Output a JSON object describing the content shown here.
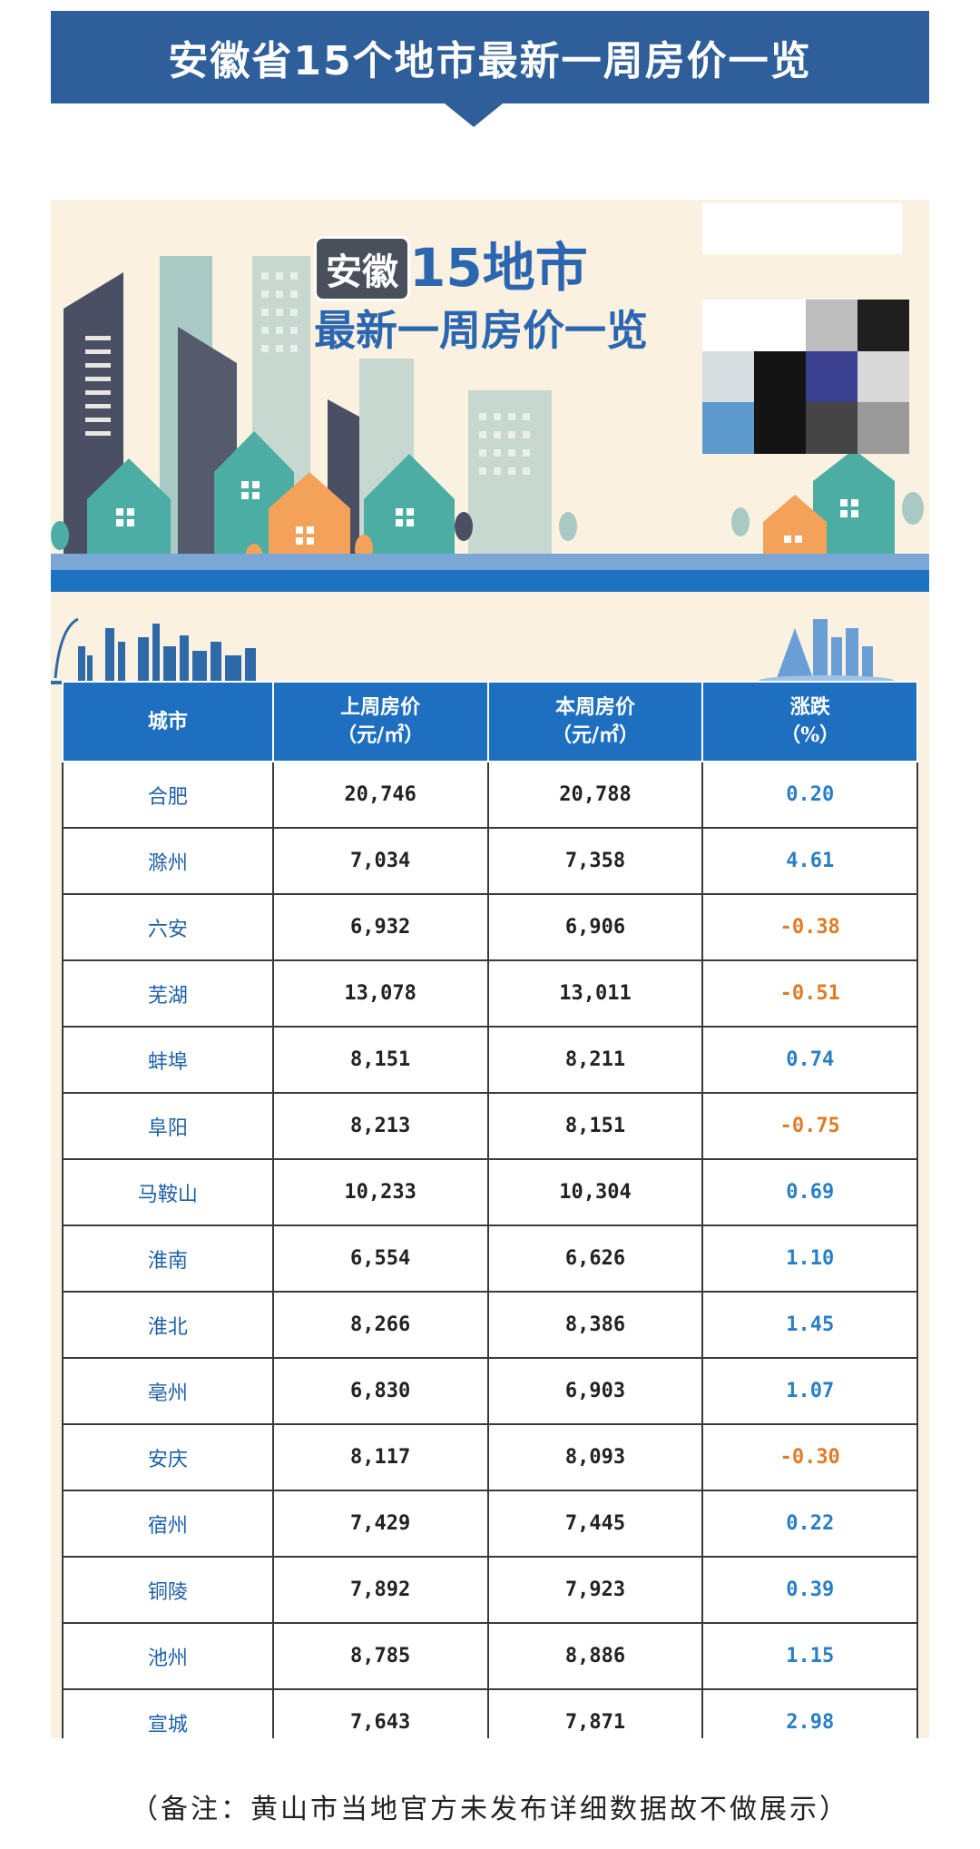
{
  "banner": {
    "title": "安徽省15个地市最新一周房价一览"
  },
  "hero": {
    "tag": "安徽",
    "title_line1": "15地市",
    "title_line2": "最新一周房价一览"
  },
  "qr_colors": [
    "#ffffff",
    "#ffffff",
    "#bdbdbd",
    "#1f1f1f",
    "#d5dde0",
    "#141414",
    "#3a3f8f",
    "#d9d9d9",
    "#5d9bcf",
    "#141414",
    "#444444",
    "#9a9a9a"
  ],
  "table": {
    "headers": {
      "city": "城市",
      "last_week_l1": "上周房价",
      "last_week_l2": "（元/㎡）",
      "this_week_l1": "本周房价",
      "this_week_l2": "（元/㎡）",
      "change_l1": "涨跌",
      "change_l2": "（%）"
    },
    "rows": [
      {
        "city": "合肥",
        "last": "20,746",
        "this": "20,788",
        "change": "0.20"
      },
      {
        "city": "滁州",
        "last": "7,034",
        "this": "7,358",
        "change": "4.61"
      },
      {
        "city": "六安",
        "last": "6,932",
        "this": "6,906",
        "change": "-0.38"
      },
      {
        "city": "芜湖",
        "last": "13,078",
        "this": "13,011",
        "change": "-0.51"
      },
      {
        "city": "蚌埠",
        "last": "8,151",
        "this": "8,211",
        "change": "0.74"
      },
      {
        "city": "阜阳",
        "last": "8,213",
        "this": "8,151",
        "change": "-0.75"
      },
      {
        "city": "马鞍山",
        "last": "10,233",
        "this": "10,304",
        "change": "0.69"
      },
      {
        "city": "淮南",
        "last": "6,554",
        "this": "6,626",
        "change": "1.10"
      },
      {
        "city": "淮北",
        "last": "8,266",
        "this": "8,386",
        "change": "1.45"
      },
      {
        "city": "亳州",
        "last": "6,830",
        "this": "6,903",
        "change": "1.07"
      },
      {
        "city": "安庆",
        "last": "8,117",
        "this": "8,093",
        "change": "-0.30"
      },
      {
        "city": "宿州",
        "last": "7,429",
        "this": "7,445",
        "change": "0.22"
      },
      {
        "city": "铜陵",
        "last": "7,892",
        "this": "7,923",
        "change": "0.39"
      },
      {
        "city": "池州",
        "last": "8,785",
        "this": "8,886",
        "change": "1.15"
      },
      {
        "city": "宣城",
        "last": "7,643",
        "this": "7,871",
        "change": "2.98"
      }
    ]
  },
  "colors": {
    "positive": "#2a7fc4",
    "negative": "#e07b26",
    "header_bg": "#1e6fc0",
    "banner_bg": "#2f5f9a"
  },
  "footer": {
    "note": "（备注：黄山市当地官方未发布详细数据故不做展示）"
  }
}
